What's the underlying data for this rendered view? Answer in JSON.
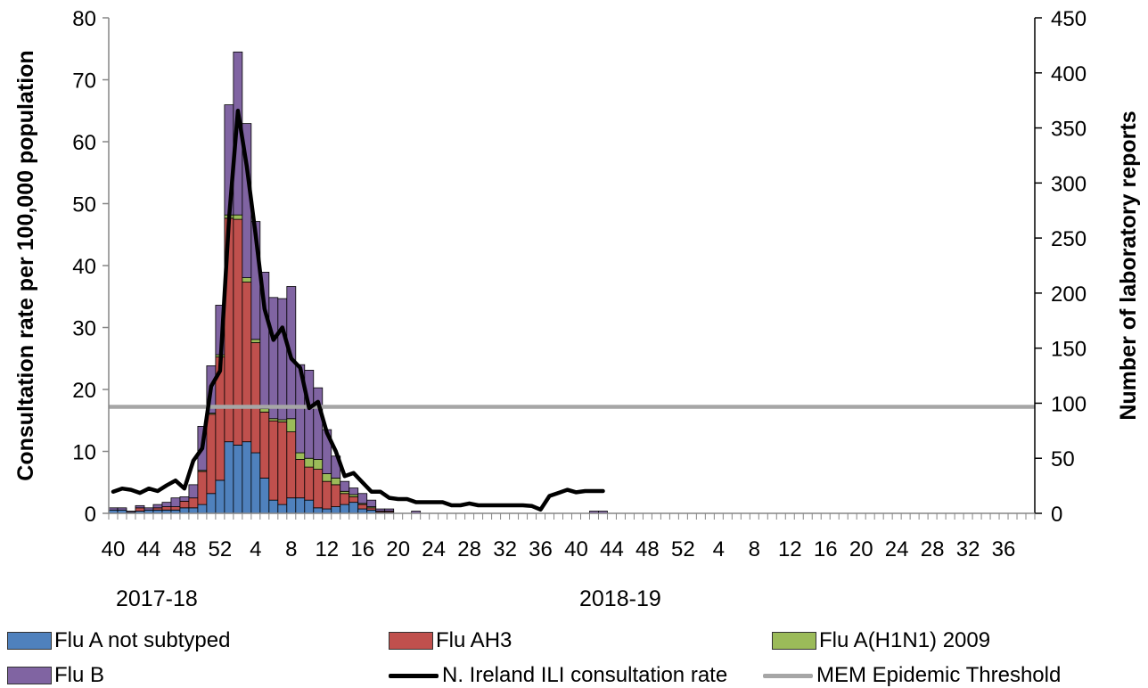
{
  "chart_data": {
    "type": "bar",
    "stacked": true,
    "y_left_label": "Consultation rate per 100,000 population",
    "y_right_label": "Number of laboratory reports",
    "y_left_lim": [
      0,
      80
    ],
    "y_left_ticks": [
      0,
      10,
      20,
      30,
      40,
      50,
      60,
      70,
      80
    ],
    "y_right_lim": [
      0,
      450
    ],
    "y_right_ticks": [
      0,
      50,
      100,
      150,
      200,
      250,
      300,
      350,
      400,
      450
    ],
    "x_tick_labels": [
      "40",
      "44",
      "48",
      "52",
      "4",
      "8",
      "12",
      "16",
      "20",
      "24",
      "28",
      "32",
      "36",
      "40",
      "44",
      "48",
      "52",
      "4",
      "8",
      "12",
      "16",
      "20",
      "24",
      "28",
      "32",
      "36"
    ],
    "seasons": [
      "2017-18",
      "2018-19"
    ],
    "weeks": [
      40,
      41,
      42,
      43,
      44,
      45,
      46,
      47,
      48,
      49,
      50,
      51,
      52,
      1,
      2,
      3,
      4,
      5,
      6,
      7,
      8,
      9,
      10,
      11,
      12,
      13,
      14,
      15,
      16,
      17,
      18,
      19,
      20,
      21,
      22,
      23,
      24,
      25,
      26,
      27,
      28,
      29,
      30,
      31,
      32,
      33,
      34,
      35,
      36,
      37,
      38,
      39,
      40,
      41,
      42,
      43
    ],
    "series": [
      {
        "name": "Flu A not subtyped",
        "color": "#4f81bd",
        "axis": "right",
        "values": [
          3,
          3,
          1,
          2,
          3,
          3,
          3,
          3,
          5,
          5,
          8,
          18,
          30,
          65,
          62,
          65,
          55,
          32,
          12,
          8,
          14,
          14,
          12,
          5,
          4,
          6,
          8,
          10,
          4,
          3,
          1,
          1,
          0,
          0,
          0,
          0,
          0,
          0,
          0,
          0,
          0,
          0,
          0,
          0,
          0,
          0,
          0,
          0,
          0,
          0,
          0,
          0,
          0,
          0,
          0,
          0
        ]
      },
      {
        "name": "Flu AH3",
        "color": "#c0504d",
        "axis": "right",
        "values": [
          0,
          0,
          0,
          3,
          0,
          2,
          3,
          3,
          6,
          9,
          30,
          72,
          112,
          203,
          205,
          145,
          100,
          60,
          72,
          75,
          60,
          35,
          30,
          35,
          25,
          20,
          10,
          5,
          4,
          2,
          1,
          1,
          0,
          0,
          0,
          0,
          0,
          0,
          0,
          0,
          0,
          0,
          0,
          0,
          0,
          0,
          0,
          0,
          0,
          0,
          0,
          0,
          0,
          0,
          0,
          0
        ]
      },
      {
        "name": "Flu A(H1N1) 2009",
        "color": "#9bbb59",
        "axis": "right",
        "values": [
          0,
          0,
          0,
          0,
          0,
          0,
          0,
          0,
          0,
          0,
          1,
          1,
          2,
          3,
          4,
          4,
          3,
          3,
          2,
          2,
          12,
          6,
          8,
          9,
          7,
          6,
          2,
          2,
          1,
          1,
          0,
          0,
          0,
          0,
          0,
          0,
          0,
          0,
          0,
          0,
          0,
          0,
          0,
          0,
          0,
          0,
          0,
          0,
          0,
          0,
          0,
          0,
          0,
          0,
          0,
          0
        ]
      },
      {
        "name": "Flu B",
        "color": "#8064a2",
        "axis": "right",
        "values": [
          2,
          2,
          1,
          2,
          2,
          3,
          4,
          8,
          4,
          12,
          40,
          43,
          45,
          100,
          148,
          140,
          107,
          124,
          110,
          110,
          120,
          80,
          80,
          65,
          40,
          20,
          9,
          6,
          9,
          6,
          2,
          2,
          0,
          0,
          2,
          0,
          0,
          0,
          0,
          0,
          0,
          0,
          0,
          0,
          0,
          0,
          0,
          0,
          0,
          0,
          0,
          0,
          0,
          0,
          2,
          2
        ]
      }
    ],
    "line_series": [
      {
        "name": "N. Ireland ILI consultation rate",
        "color": "#000000",
        "axis": "left",
        "values": [
          3.5,
          4,
          3.8,
          3.3,
          4,
          3.6,
          4.5,
          5.3,
          4,
          8.5,
          10.5,
          20.5,
          23,
          47.5,
          65,
          56,
          45,
          33,
          28,
          30,
          25,
          23.5,
          17,
          18,
          13,
          10,
          6,
          6.5,
          5,
          3.5,
          3.5,
          2.5,
          2.3,
          2.3,
          1.8,
          1.8,
          1.8,
          1.8,
          1.3,
          1.3,
          1.6,
          1.3,
          1.3,
          1.3,
          1.3,
          1.3,
          1.3,
          1.2,
          0.6,
          2.8,
          3.3,
          3.8,
          3.4,
          3.6,
          3.6,
          3.6
        ]
      },
      {
        "name": "MEM Epidemic Threshold",
        "color": "#a6a6a6",
        "axis": "left",
        "value": 17.2
      }
    ],
    "legend_position": "bottom",
    "grid": false
  }
}
